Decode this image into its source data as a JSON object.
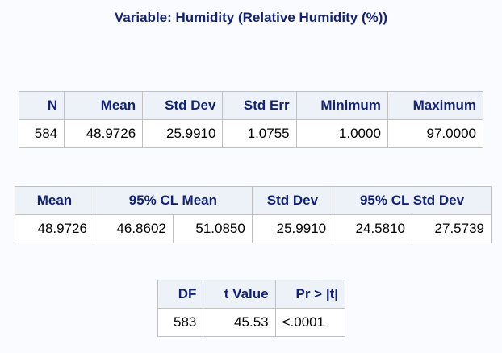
{
  "title": "Variable: Humidity (Relative Humidity (%))",
  "summary_table": {
    "headers": [
      "N",
      "Mean",
      "Std Dev",
      "Std Err",
      "Minimum",
      "Maximum"
    ],
    "row": [
      "584",
      "48.9726",
      "25.9910",
      "1.0755",
      "1.0000",
      "97.0000"
    ]
  },
  "cl_table": {
    "headers": [
      "Mean",
      "95% CL Mean",
      "Std Dev",
      "95% CL Std Dev"
    ],
    "row": [
      "48.9726",
      "46.8602",
      "51.0850",
      "25.9910",
      "24.5810",
      "27.5739"
    ]
  },
  "ttest_table": {
    "headers": [
      "DF",
      "t Value",
      "Pr > |t|"
    ],
    "row": [
      "583",
      "45.53",
      "<.0001"
    ]
  },
  "colors": {
    "header_text": "#112277",
    "header_bg": "#edf2f9",
    "border": "#c1c1c1",
    "page_bg": "#fafbfe"
  }
}
